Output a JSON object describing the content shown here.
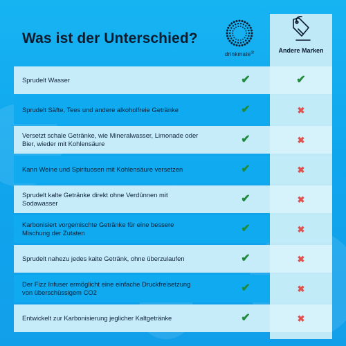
{
  "title": "Was ist der Unterschied?",
  "columns": {
    "brand": {
      "name": "drinkmate",
      "registered": "®",
      "logo_icon": "sparkle-ring-icon"
    },
    "other": {
      "name": "Andere Marken",
      "icon": "price-tag-icon"
    }
  },
  "marks": {
    "check": "✔",
    "cross": "✖"
  },
  "colors": {
    "background": "#12a6ee",
    "row_light": "#c7ecf9",
    "row_dark": "#0faaf0",
    "other_column": "#bfe9f7",
    "check": "#1f8a3c",
    "cross": "#e0524f",
    "text": "#0b1b2e"
  },
  "rows": [
    {
      "label": "Sprudelt Wasser",
      "brand": "✔",
      "other": "✔"
    },
    {
      "label": "Sprudelt Säfte, Tees und andere alkoholfreie Getränke",
      "brand": "✔",
      "other": "✖"
    },
    {
      "label": "Versetzt schale Getränke, wie Mineralwasser, Limonade oder Bier, wieder mit Kohlensäure",
      "brand": "✔",
      "other": "✖"
    },
    {
      "label": "Kann Weine und Spirituosen mit Kohlensäure versetzen",
      "brand": "✔",
      "other": "✖"
    },
    {
      "label": "Sprudelt kalte Getränke direkt ohne Verdünnen mit Sodawasser",
      "brand": "✔",
      "other": "✖"
    },
    {
      "label": "Karbonisiert vorgemischte Getränke für eine bessere Mischung der Zutaten",
      "brand": "✔",
      "other": "✖"
    },
    {
      "label": "Sprudelt nahezu jedes kalte Getränk, ohne überzulaufen",
      "brand": "✔",
      "other": "✖"
    },
    {
      "label": "Der Fizz Infuser ermöglicht eine einfache Druckfreisetzung von überschüssigem CO2",
      "brand": "✔",
      "other": "✖"
    },
    {
      "label": "Entwickelt zur Karbonisierung jeglicher Kaltgetränke",
      "brand": "✔",
      "other": "✖"
    }
  ]
}
